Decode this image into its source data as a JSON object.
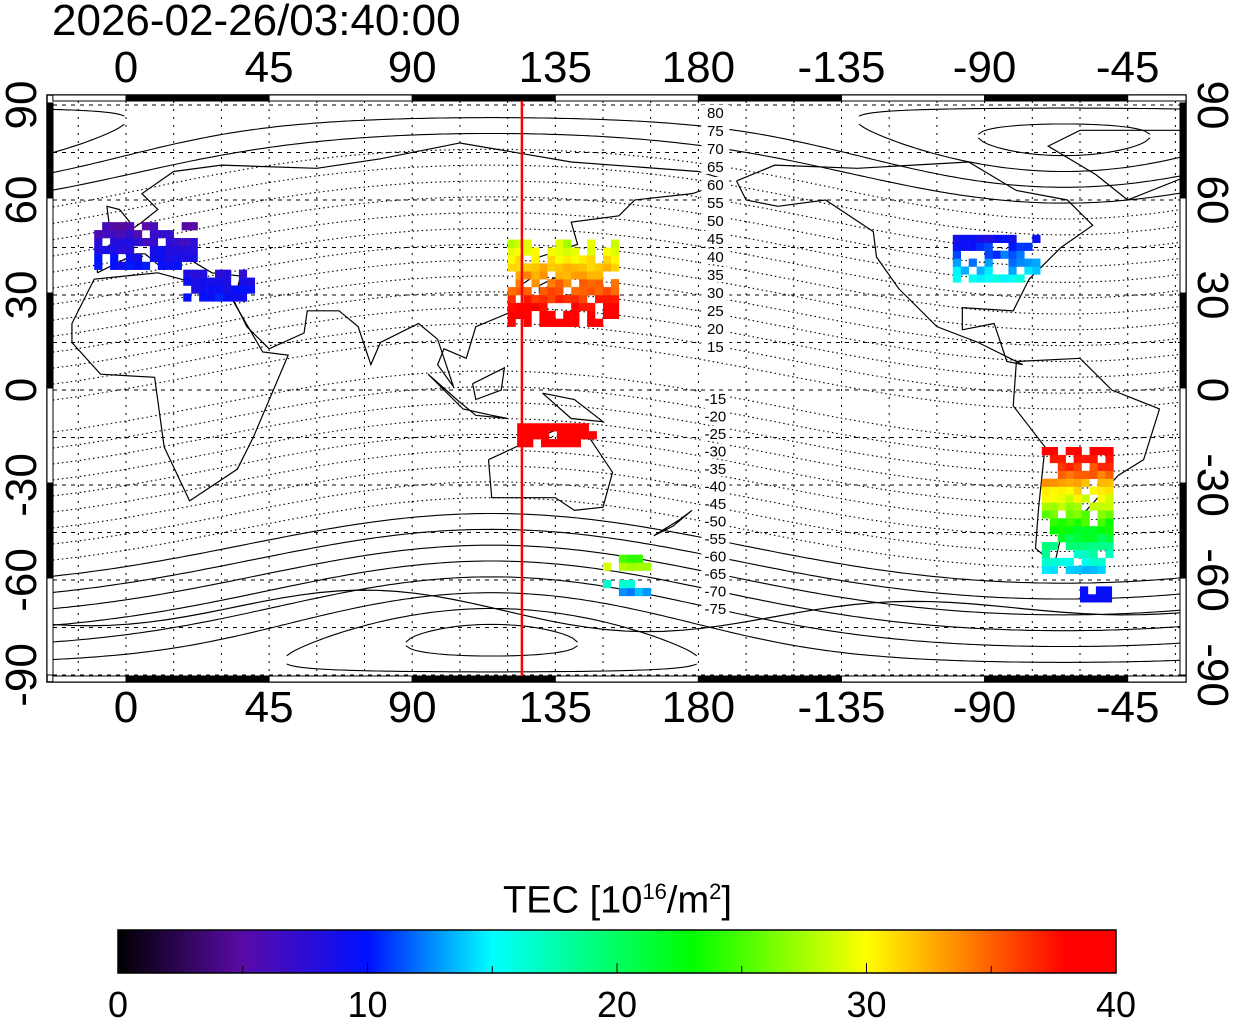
{
  "title": "2026-02-26/03:40:00",
  "map": {
    "x_ticks": [
      0,
      45,
      90,
      135,
      180,
      -135,
      -90,
      -45
    ],
    "x_tick_labels": [
      "0",
      "45",
      "90",
      "135",
      "180",
      "-135",
      "-90",
      "-45"
    ],
    "y_ticks": [
      90,
      60,
      30,
      0,
      -30,
      -60,
      -90
    ],
    "y_tick_labels": [
      "90",
      "60",
      "30",
      "0",
      "-30",
      "-60",
      "-90"
    ],
    "marker_longitude": 124.5,
    "marker_color": "#ff0000",
    "mag_lat_labels": [
      "80",
      "75",
      "70",
      "65",
      "60",
      "55",
      "50",
      "45",
      "40",
      "35",
      "30",
      "25",
      "20",
      "15",
      "-15",
      "-20",
      "-25",
      "-30",
      "-35",
      "-40",
      "-45",
      "-50",
      "-55",
      "-60",
      "-65",
      "-70",
      "-75"
    ],
    "tec_regions": [
      {
        "name": "europe",
        "lon": [
          -10,
          22
        ],
        "lat": [
          38,
          52
        ],
        "tec_north": 5,
        "tec_south": 10
      },
      {
        "name": "mediterranean",
        "lon": [
          18,
          40
        ],
        "lat": [
          28,
          38
        ],
        "tec_north": 7,
        "tec_south": 10
      },
      {
        "name": "japan",
        "lon": [
          120,
          155
        ],
        "lat": [
          20,
          46
        ],
        "tec_north": 28,
        "tec_south": 40
      },
      {
        "name": "north-australia",
        "lon": [
          123,
          147
        ],
        "lat": [
          -18,
          -12
        ],
        "tec_north": 40,
        "tec_south": 40
      },
      {
        "name": "tasman",
        "lon": [
          150,
          165
        ],
        "lat": [
          -57,
          -52
        ],
        "tec_north": 22,
        "tec_south": 28
      },
      {
        "name": "southern-ocean",
        "lon": [
          150,
          165
        ],
        "lat": [
          -65,
          -62
        ],
        "tec_north": 17,
        "tec_south": 13
      },
      {
        "name": "north-america",
        "lon": [
          -100,
          -74
        ],
        "lat": [
          34,
          49
        ],
        "tec_north": 8,
        "tec_south": 15
      },
      {
        "name": "south-america",
        "lon": [
          -72,
          -50
        ],
        "lat": [
          -58,
          -20
        ],
        "tec_north": 40,
        "tec_south": 14
      },
      {
        "name": "drake",
        "lon": [
          -60,
          -48
        ],
        "lat": [
          -67,
          -64
        ],
        "tec_north": 9,
        "tec_south": 9
      }
    ]
  },
  "colorbar": {
    "title": "TEC  [10",
    "title_exp": "16",
    "title_unit": "/m",
    "title_unit_exp": "2",
    "title_close": "]",
    "min": 0,
    "max": 40,
    "tick_labels": [
      "0",
      "10",
      "20",
      "30",
      "40"
    ],
    "stops": [
      {
        "v": 0,
        "c": "#000000"
      },
      {
        "v": 5,
        "c": "#5a0aa8"
      },
      {
        "v": 10,
        "c": "#0010ff"
      },
      {
        "v": 15,
        "c": "#00ffff"
      },
      {
        "v": 23,
        "c": "#00ff00"
      },
      {
        "v": 30,
        "c": "#ffff00"
      },
      {
        "v": 35,
        "c": "#ff6000"
      },
      {
        "v": 38,
        "c": "#ff0000"
      },
      {
        "v": 40,
        "c": "#ff0000"
      }
    ]
  }
}
